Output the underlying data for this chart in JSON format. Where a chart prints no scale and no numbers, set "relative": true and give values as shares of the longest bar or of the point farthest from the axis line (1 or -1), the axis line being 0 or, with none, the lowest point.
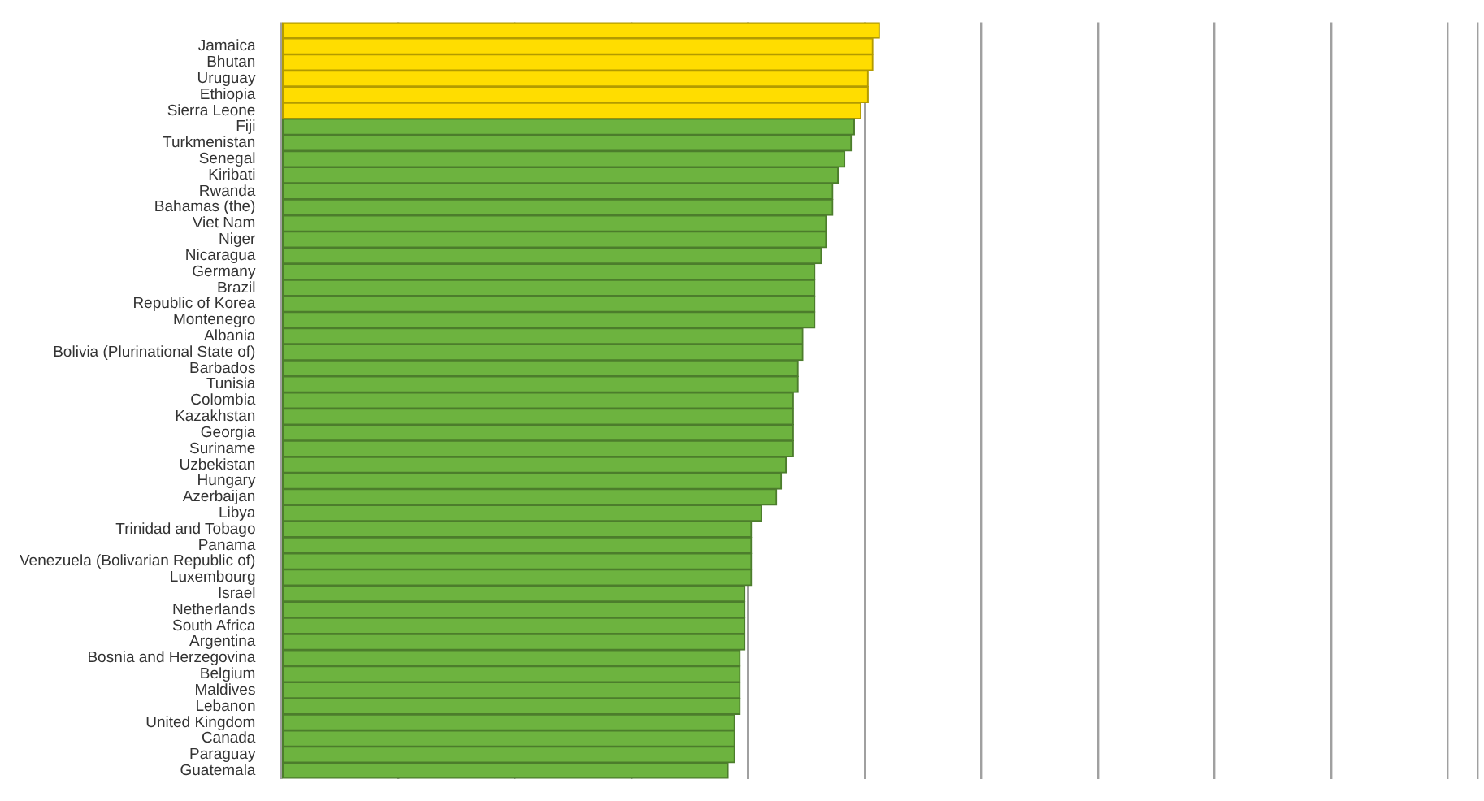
{
  "chart_data": {
    "type": "bar",
    "orientation": "horizontal",
    "relative": true,
    "grid": "x",
    "categories": [
      null,
      "Jamaica",
      "Bhutan",
      "Uruguay",
      "Ethiopia",
      "Sierra Leone",
      "Fiji",
      "Turkmenistan",
      "Senegal",
      "Kiribati",
      "Rwanda",
      "Bahamas (the)",
      "Viet Nam",
      "Niger",
      "Nicaragua",
      "Germany",
      "Brazil",
      "Republic of Korea",
      "Montenegro",
      "Albania",
      "Bolivia (Plurinational State of)",
      "Barbados",
      "Tunisia",
      "Colombia",
      "Kazakhstan",
      "Georgia",
      "Suriname",
      "Uzbekistan",
      "Hungary",
      "Azerbaijan",
      "Libya",
      "Trinidad and Tobago",
      "Panama",
      "Venezuela (Bolivarian Republic of)",
      "Luxembourg",
      "Israel",
      "Netherlands",
      "South Africa",
      "Argentina",
      "Bosnia and Herzegovina",
      "Belgium",
      "Maldives",
      "Lebanon",
      "United Kingdom",
      "Canada",
      "Paraguay",
      "Guatemala"
    ],
    "values": [
      1,
      0.989,
      0.989,
      0.981,
      0.981,
      0.969,
      0.958,
      0.953,
      0.942,
      0.931,
      0.922,
      0.922,
      0.911,
      0.911,
      0.903,
      0.892,
      0.892,
      0.892,
      0.892,
      0.872,
      0.872,
      0.864,
      0.864,
      0.856,
      0.856,
      0.856,
      0.856,
      0.844,
      0.836,
      0.828,
      0.803,
      0.786,
      0.786,
      0.786,
      0.786,
      0.775,
      0.775,
      0.775,
      0.775,
      0.767,
      0.767,
      0.767,
      0.767,
      0.758,
      0.758,
      0.758,
      0.747
    ],
    "colors": [
      "#ffdd00",
      "#ffdd00",
      "#ffdd00",
      "#ffdd00",
      "#ffdd00",
      "#ffdd00",
      "#6db33f",
      "#6db33f",
      "#6db33f",
      "#6db33f",
      "#6db33f",
      "#6db33f",
      "#6db33f",
      "#6db33f",
      "#6db33f",
      "#6db33f",
      "#6db33f",
      "#6db33f",
      "#6db33f",
      "#6db33f",
      "#6db33f",
      "#6db33f",
      "#6db33f",
      "#6db33f",
      "#6db33f",
      "#6db33f",
      "#6db33f",
      "#6db33f",
      "#6db33f",
      "#6db33f",
      "#6db33f",
      "#6db33f",
      "#6db33f",
      "#6db33f",
      "#6db33f",
      "#6db33f",
      "#6db33f",
      "#6db33f",
      "#6db33f",
      "#6db33f",
      "#6db33f",
      "#6db33f",
      "#6db33f",
      "#6db33f",
      "#6db33f",
      "#6db33f",
      "#6db33f"
    ]
  }
}
